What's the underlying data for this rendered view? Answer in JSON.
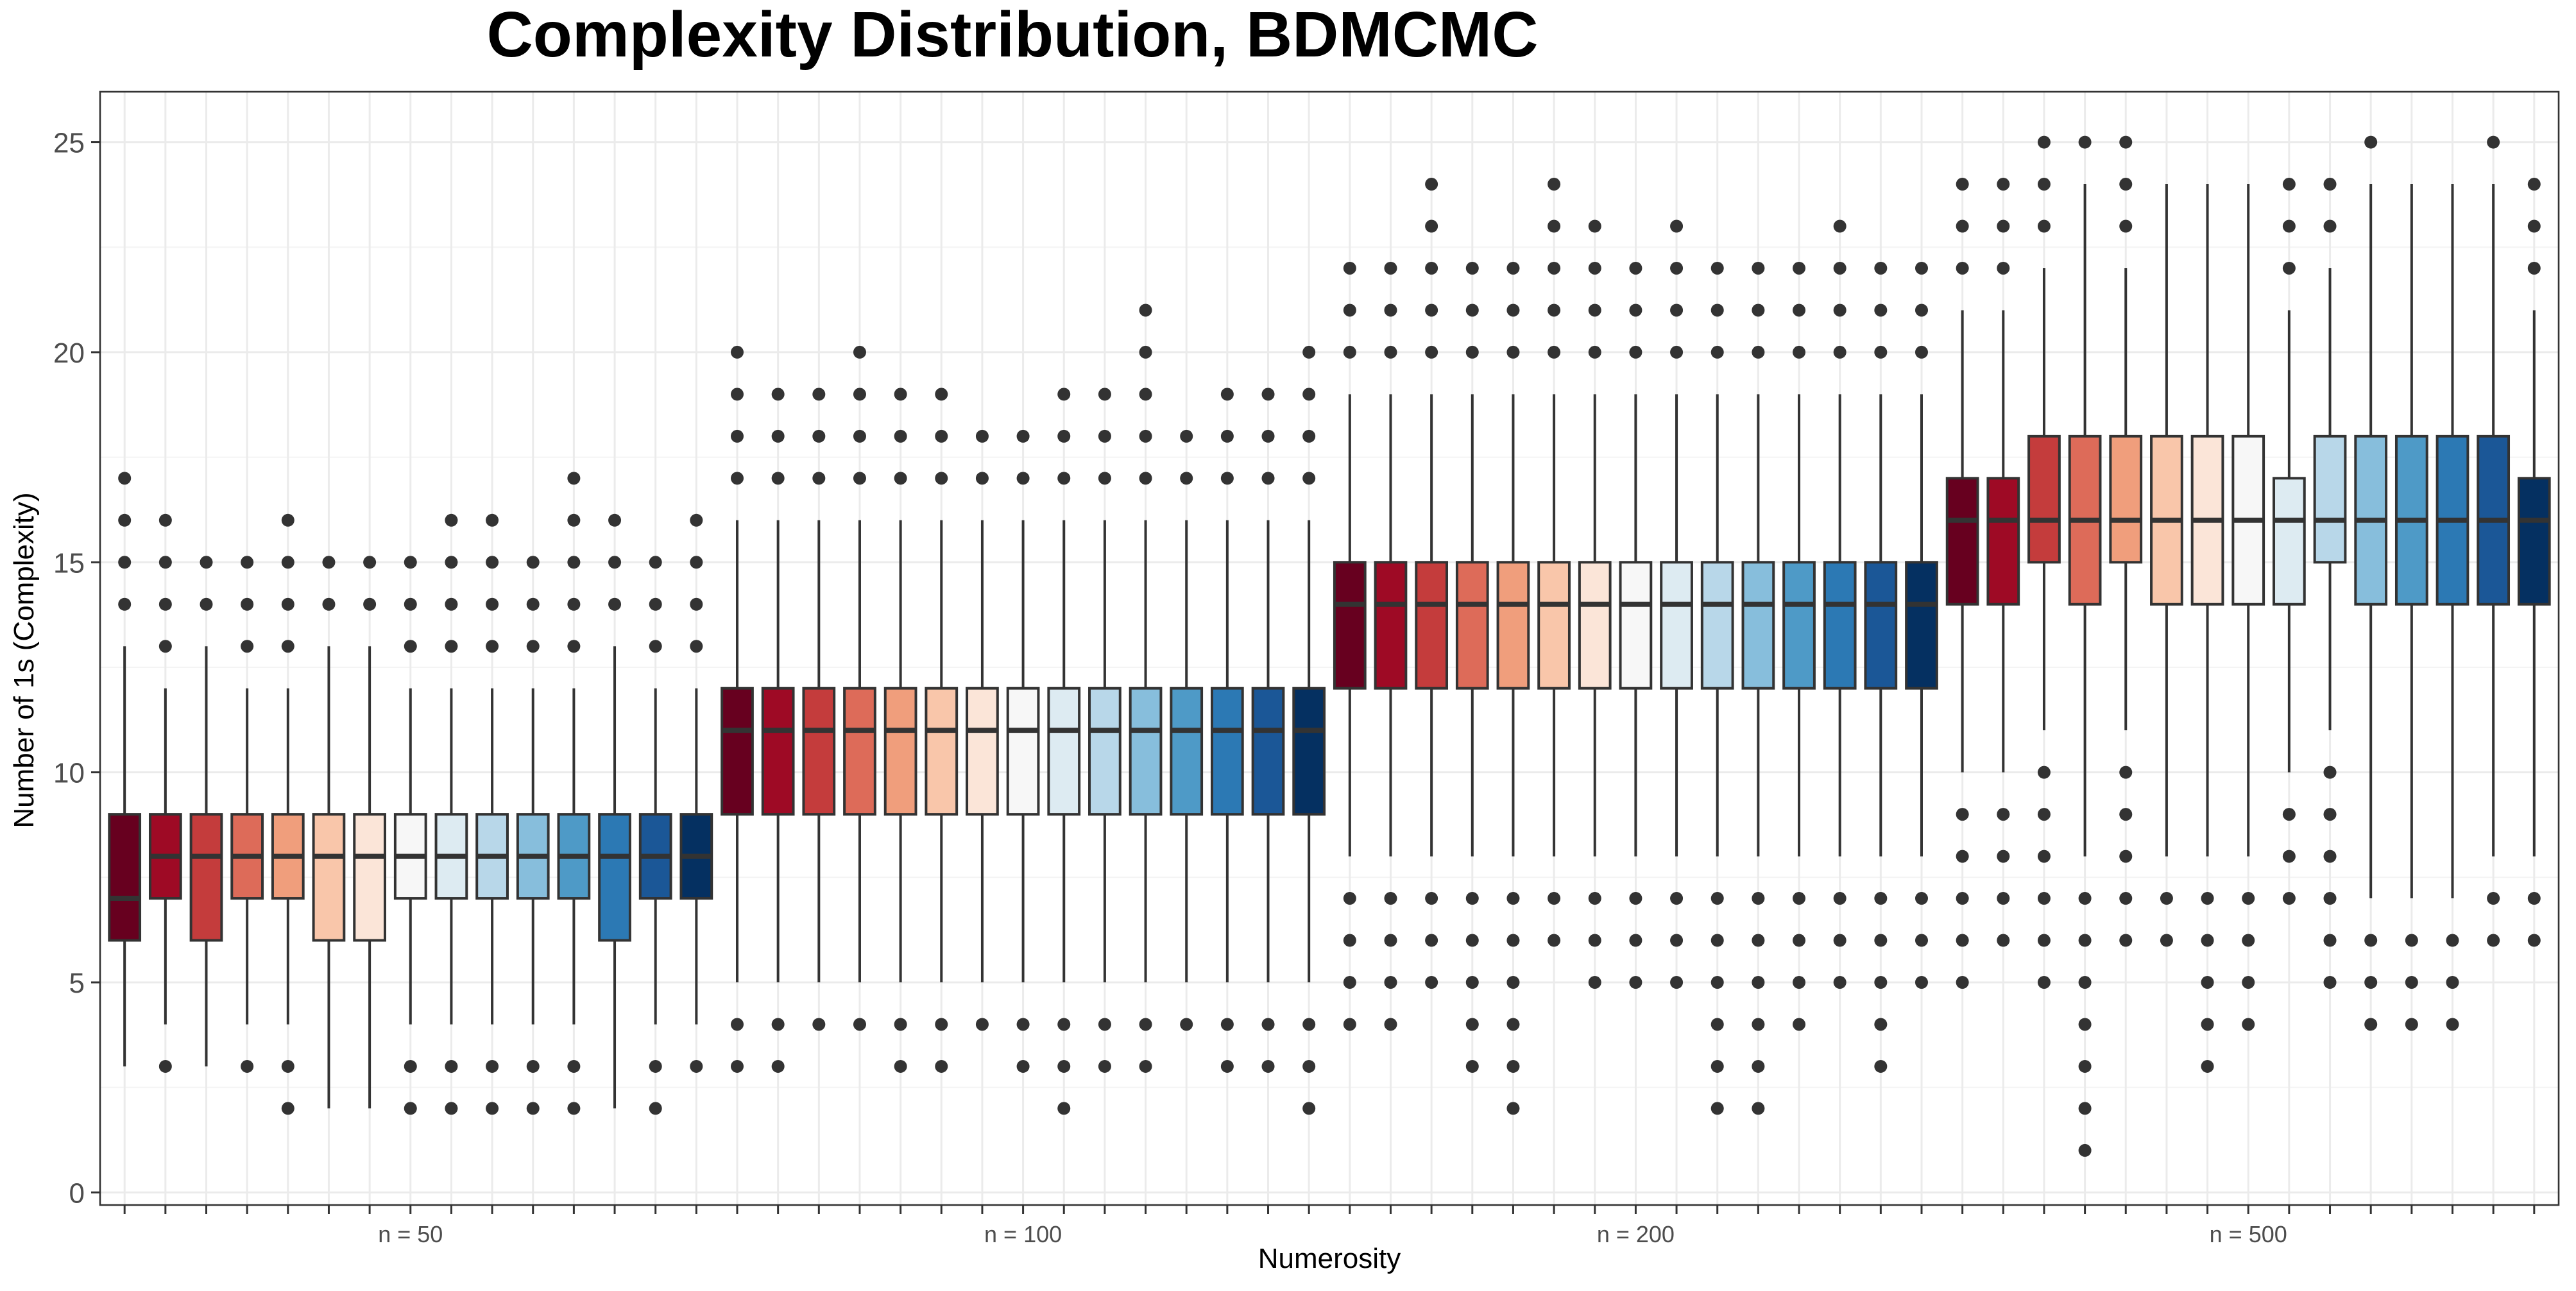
{
  "chart_data": {
    "type": "boxplot",
    "title": "Complexity Distribution, BDMCMC",
    "xlabel": "Numerosity",
    "ylabel": "Number of 1s (Complexity)",
    "ylim": [
      -0.3,
      26.2
    ],
    "y_ticks": [
      0,
      5,
      10,
      15,
      20,
      25
    ],
    "grid": true,
    "legend": "none",
    "groups": [
      {
        "label": "n = 50",
        "boxes": [
          {
            "low": 3,
            "q1": 6,
            "median": 7,
            "q3": 9,
            "high": 13,
            "outliers": [
              14,
              15,
              16,
              17
            ]
          },
          {
            "low": 4,
            "q1": 7,
            "median": 8,
            "q3": 9,
            "high": 12,
            "outliers": [
              3,
              13,
              14,
              15,
              16
            ]
          },
          {
            "low": 3,
            "q1": 6,
            "median": 8,
            "q3": 9,
            "high": 13,
            "outliers": [
              14,
              15
            ]
          },
          {
            "low": 4,
            "q1": 7,
            "median": 8,
            "q3": 9,
            "high": 12,
            "outliers": [
              3,
              13,
              14,
              15
            ]
          },
          {
            "low": 4,
            "q1": 7,
            "median": 8,
            "q3": 9,
            "high": 12,
            "outliers": [
              2,
              3,
              13,
              14,
              15,
              16
            ]
          },
          {
            "low": 2,
            "q1": 6,
            "median": 8,
            "q3": 9,
            "high": 13,
            "outliers": [
              14,
              15
            ]
          },
          {
            "low": 2,
            "q1": 6,
            "median": 8,
            "q3": 9,
            "high": 13,
            "outliers": [
              14,
              15
            ]
          },
          {
            "low": 4,
            "q1": 7,
            "median": 8,
            "q3": 9,
            "high": 12,
            "outliers": [
              2,
              3,
              13,
              14,
              15
            ]
          },
          {
            "low": 4,
            "q1": 7,
            "median": 8,
            "q3": 9,
            "high": 12,
            "outliers": [
              2,
              3,
              13,
              14,
              15,
              16
            ]
          },
          {
            "low": 4,
            "q1": 7,
            "median": 8,
            "q3": 9,
            "high": 12,
            "outliers": [
              2,
              3,
              13,
              14,
              15,
              16
            ]
          },
          {
            "low": 4,
            "q1": 7,
            "median": 8,
            "q3": 9,
            "high": 12,
            "outliers": [
              2,
              3,
              13,
              14,
              15
            ]
          },
          {
            "low": 4,
            "q1": 7,
            "median": 8,
            "q3": 9,
            "high": 12,
            "outliers": [
              2,
              3,
              13,
              14,
              15,
              16,
              17
            ]
          },
          {
            "low": 2,
            "q1": 6,
            "median": 8,
            "q3": 9,
            "high": 13,
            "outliers": [
              14,
              15,
              16
            ]
          },
          {
            "low": 4,
            "q1": 7,
            "median": 8,
            "q3": 9,
            "high": 12,
            "outliers": [
              2,
              3,
              13,
              14,
              15
            ]
          },
          {
            "low": 4,
            "q1": 7,
            "median": 8,
            "q3": 9,
            "high": 12,
            "outliers": [
              3,
              13,
              14,
              15,
              16
            ]
          }
        ]
      },
      {
        "label": "n = 100",
        "boxes": [
          {
            "low": 5,
            "q1": 9,
            "median": 11,
            "q3": 12,
            "high": 16,
            "outliers": [
              3,
              4,
              17,
              18,
              19,
              20
            ]
          },
          {
            "low": 5,
            "q1": 9,
            "median": 11,
            "q3": 12,
            "high": 16,
            "outliers": [
              3,
              4,
              17,
              18,
              19
            ]
          },
          {
            "low": 5,
            "q1": 9,
            "median": 11,
            "q3": 12,
            "high": 16,
            "outliers": [
              4,
              17,
              18,
              19
            ]
          },
          {
            "low": 5,
            "q1": 9,
            "median": 11,
            "q3": 12,
            "high": 16,
            "outliers": [
              4,
              17,
              18,
              19,
              20
            ]
          },
          {
            "low": 5,
            "q1": 9,
            "median": 11,
            "q3": 12,
            "high": 16,
            "outliers": [
              3,
              4,
              17,
              18,
              19
            ]
          },
          {
            "low": 5,
            "q1": 9,
            "median": 11,
            "q3": 12,
            "high": 16,
            "outliers": [
              3,
              4,
              17,
              18,
              19
            ]
          },
          {
            "low": 5,
            "q1": 9,
            "median": 11,
            "q3": 12,
            "high": 16,
            "outliers": [
              4,
              17,
              18
            ]
          },
          {
            "low": 5,
            "q1": 9,
            "median": 11,
            "q3": 12,
            "high": 16,
            "outliers": [
              3,
              4,
              17,
              18
            ]
          },
          {
            "low": 5,
            "q1": 9,
            "median": 11,
            "q3": 12,
            "high": 16,
            "outliers": [
              2,
              3,
              4,
              17,
              18,
              19
            ]
          },
          {
            "low": 5,
            "q1": 9,
            "median": 11,
            "q3": 12,
            "high": 16,
            "outliers": [
              3,
              4,
              17,
              18,
              19
            ]
          },
          {
            "low": 5,
            "q1": 9,
            "median": 11,
            "q3": 12,
            "high": 16,
            "outliers": [
              3,
              4,
              17,
              18,
              19,
              20,
              21
            ]
          },
          {
            "low": 5,
            "q1": 9,
            "median": 11,
            "q3": 12,
            "high": 16,
            "outliers": [
              4,
              17,
              18
            ]
          },
          {
            "low": 5,
            "q1": 9,
            "median": 11,
            "q3": 12,
            "high": 16,
            "outliers": [
              3,
              4,
              17,
              18,
              19
            ]
          },
          {
            "low": 5,
            "q1": 9,
            "median": 11,
            "q3": 12,
            "high": 16,
            "outliers": [
              3,
              4,
              17,
              18,
              19
            ]
          },
          {
            "low": 5,
            "q1": 9,
            "median": 11,
            "q3": 12,
            "high": 16,
            "outliers": [
              2,
              3,
              4,
              17,
              18,
              19,
              20
            ]
          }
        ]
      },
      {
        "label": "n = 200",
        "boxes": [
          {
            "low": 8,
            "q1": 12,
            "median": 14,
            "q3": 15,
            "high": 19,
            "outliers": [
              4,
              5,
              6,
              7,
              20,
              21,
              22
            ]
          },
          {
            "low": 8,
            "q1": 12,
            "median": 14,
            "q3": 15,
            "high": 19,
            "outliers": [
              4,
              5,
              6,
              7,
              20,
              21,
              22
            ]
          },
          {
            "low": 8,
            "q1": 12,
            "median": 14,
            "q3": 15,
            "high": 19,
            "outliers": [
              5,
              6,
              7,
              20,
              21,
              22,
              23,
              24
            ]
          },
          {
            "low": 8,
            "q1": 12,
            "median": 14,
            "q3": 15,
            "high": 19,
            "outliers": [
              3,
              4,
              5,
              6,
              7,
              20,
              21,
              22
            ]
          },
          {
            "low": 8,
            "q1": 12,
            "median": 14,
            "q3": 15,
            "high": 19,
            "outliers": [
              2,
              3,
              4,
              5,
              6,
              7,
              20,
              21,
              22
            ]
          },
          {
            "low": 8,
            "q1": 12,
            "median": 14,
            "q3": 15,
            "high": 19,
            "outliers": [
              6,
              7,
              20,
              21,
              22,
              23,
              24
            ]
          },
          {
            "low": 8,
            "q1": 12,
            "median": 14,
            "q3": 15,
            "high": 19,
            "outliers": [
              5,
              6,
              7,
              20,
              21,
              22,
              23
            ]
          },
          {
            "low": 8,
            "q1": 12,
            "median": 14,
            "q3": 15,
            "high": 19,
            "outliers": [
              5,
              6,
              7,
              20,
              21,
              22
            ]
          },
          {
            "low": 8,
            "q1": 12,
            "median": 14,
            "q3": 15,
            "high": 19,
            "outliers": [
              5,
              6,
              7,
              20,
              21,
              22,
              23
            ]
          },
          {
            "low": 8,
            "q1": 12,
            "median": 14,
            "q3": 15,
            "high": 19,
            "outliers": [
              2,
              3,
              4,
              5,
              6,
              7,
              20,
              21,
              22
            ]
          },
          {
            "low": 8,
            "q1": 12,
            "median": 14,
            "q3": 15,
            "high": 19,
            "outliers": [
              2,
              3,
              4,
              5,
              6,
              7,
              20,
              21,
              22
            ]
          },
          {
            "low": 8,
            "q1": 12,
            "median": 14,
            "q3": 15,
            "high": 19,
            "outliers": [
              4,
              5,
              6,
              7,
              20,
              21,
              22
            ]
          },
          {
            "low": 8,
            "q1": 12,
            "median": 14,
            "q3": 15,
            "high": 19,
            "outliers": [
              5,
              6,
              7,
              20,
              21,
              22,
              23
            ]
          },
          {
            "low": 8,
            "q1": 12,
            "median": 14,
            "q3": 15,
            "high": 19,
            "outliers": [
              3,
              4,
              5,
              6,
              7,
              20,
              21,
              22
            ]
          },
          {
            "low": 8,
            "q1": 12,
            "median": 14,
            "q3": 15,
            "high": 19,
            "outliers": [
              5,
              6,
              7,
              20,
              21,
              22
            ]
          }
        ]
      },
      {
        "label": "n = 500",
        "boxes": [
          {
            "low": 10,
            "q1": 14,
            "median": 16,
            "q3": 17,
            "high": 21,
            "outliers": [
              5,
              6,
              7,
              8,
              9,
              22,
              23,
              24
            ]
          },
          {
            "low": 10,
            "q1": 14,
            "median": 16,
            "q3": 17,
            "high": 21,
            "outliers": [
              6,
              7,
              8,
              9,
              22,
              23,
              24
            ]
          },
          {
            "low": 11,
            "q1": 15,
            "median": 16,
            "q3": 18,
            "high": 22,
            "outliers": [
              5,
              6,
              7,
              8,
              9,
              10,
              23,
              24,
              25
            ]
          },
          {
            "low": 8,
            "q1": 14,
            "median": 16,
            "q3": 18,
            "high": 24,
            "outliers": [
              1,
              2,
              3,
              4,
              5,
              6,
              7,
              25
            ]
          },
          {
            "low": 11,
            "q1": 15,
            "median": 16,
            "q3": 18,
            "high": 22,
            "outliers": [
              6,
              7,
              8,
              9,
              10,
              23,
              24,
              25
            ]
          },
          {
            "low": 8,
            "q1": 14,
            "median": 16,
            "q3": 18,
            "high": 24,
            "outliers": [
              6,
              7
            ]
          },
          {
            "low": 8,
            "q1": 14,
            "median": 16,
            "q3": 18,
            "high": 24,
            "outliers": [
              3,
              4,
              5,
              6,
              7
            ]
          },
          {
            "low": 8,
            "q1": 14,
            "median": 16,
            "q3": 18,
            "high": 24,
            "outliers": [
              4,
              5,
              6,
              7
            ]
          },
          {
            "low": 10,
            "q1": 14,
            "median": 16,
            "q3": 17,
            "high": 21,
            "outliers": [
              7,
              8,
              9,
              22,
              23,
              24
            ]
          },
          {
            "low": 11,
            "q1": 15,
            "median": 16,
            "q3": 18,
            "high": 22,
            "outliers": [
              5,
              6,
              7,
              8,
              9,
              10,
              23,
              24
            ]
          },
          {
            "low": 7,
            "q1": 14,
            "median": 16,
            "q3": 18,
            "high": 24,
            "outliers": [
              4,
              5,
              6,
              25
            ]
          },
          {
            "low": 7,
            "q1": 14,
            "median": 16,
            "q3": 18,
            "high": 24,
            "outliers": [
              4,
              5,
              6
            ]
          },
          {
            "low": 7,
            "q1": 14,
            "median": 16,
            "q3": 18,
            "high": 24,
            "outliers": [
              4,
              5,
              6
            ]
          },
          {
            "low": 8,
            "q1": 14,
            "median": 16,
            "q3": 18,
            "high": 24,
            "outliers": [
              6,
              7,
              25
            ]
          },
          {
            "low": 8,
            "q1": 14,
            "median": 16,
            "q3": 17,
            "high": 21,
            "outliers": [
              6,
              7,
              22,
              23,
              24
            ]
          }
        ]
      }
    ],
    "fill_palette": [
      "#67001f",
      "#9e0a25",
      "#c43c3c",
      "#dd6b59",
      "#f09e7c",
      "#f9c6aa",
      "#fbe5d8",
      "#f7f7f7",
      "#ddebf2",
      "#b8d7e9",
      "#87bedc",
      "#4e9ac7",
      "#2c79b4",
      "#1b5797",
      "#053061"
    ],
    "colors": {
      "box_stroke": "#333333",
      "outlier": "#333333",
      "grid_major": "#ebebeb",
      "grid_minor": "#f4f4f4",
      "panel_border": "#333333",
      "tick_label": "#4d4d4d"
    }
  }
}
